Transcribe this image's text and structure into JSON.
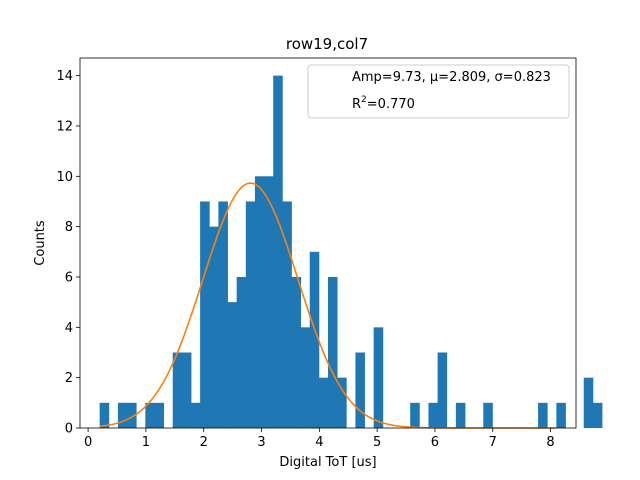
{
  "chart_data": {
    "type": "bar",
    "title": "row19,col7",
    "xlabel": "Digital ToT [us]",
    "ylabel": "Counts",
    "xlim": [
      -0.14,
      8.44
    ],
    "ylim": [
      0,
      14.7
    ],
    "xticks": [
      0,
      1,
      2,
      3,
      4,
      5,
      6,
      7,
      8
    ],
    "yticks": [
      0,
      2,
      4,
      6,
      8,
      10,
      12,
      14
    ],
    "grid": false,
    "legend_position": "top-right",
    "colors": {
      "bars": "#1f77b4",
      "fit": "#ff7f0e"
    },
    "histogram": {
      "bin_start": 0.2,
      "bin_width": 0.158,
      "counts": [
        1,
        0,
        1,
        1,
        0,
        1,
        1,
        0,
        3,
        3,
        1,
        9,
        8,
        9,
        5,
        6,
        9,
        10,
        10,
        14,
        9,
        6,
        4,
        7,
        2,
        6,
        2,
        0,
        3,
        0,
        4,
        0,
        0,
        0,
        1,
        0,
        1,
        3,
        0,
        1,
        0,
        0,
        1,
        0,
        0,
        0,
        0,
        0,
        1,
        0,
        1,
        0,
        0,
        2,
        1
      ]
    },
    "fit": {
      "amp": 9.73,
      "mu": 2.809,
      "sigma": 0.823,
      "x_range": [
        0.2,
        8.1
      ]
    },
    "legend": {
      "line1": "Amp=9.73, μ=2.809, σ=0.823",
      "r2_prefix": "R",
      "r2_sup": "2",
      "r2_value": "=0.770"
    }
  }
}
